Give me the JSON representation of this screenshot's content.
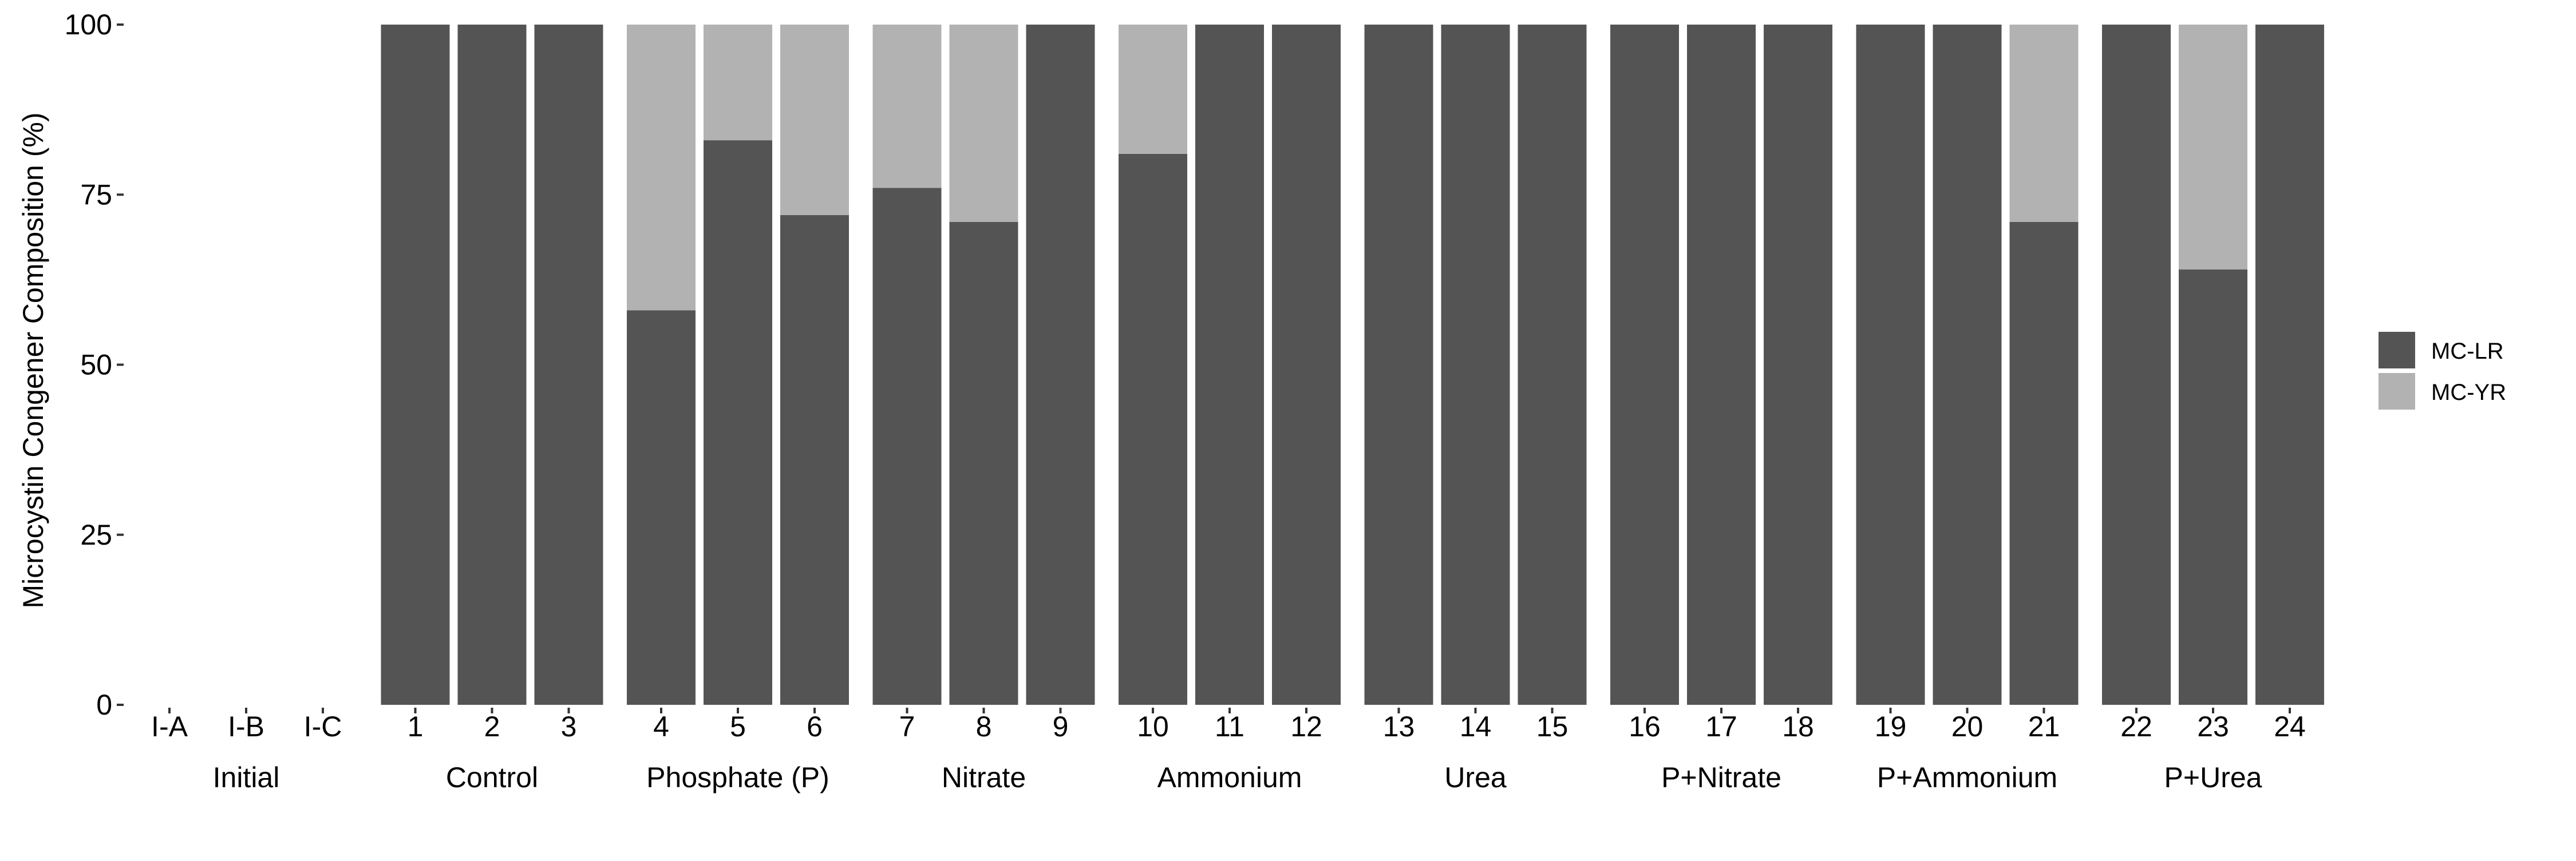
{
  "chart_data": {
    "type": "bar",
    "stacked": true,
    "ylabel": "Microcystin Congener Composition (%)",
    "xlabel": "",
    "ylim": [
      0,
      100
    ],
    "yticks": [
      0,
      25,
      50,
      75,
      100
    ],
    "grid": false,
    "legend_position": "right",
    "colors": {
      "MC-LR": "#545454",
      "MC-YR": "#b2b2b2"
    },
    "categories": [
      "I-A",
      "I-B",
      "I-C",
      "1",
      "2",
      "3",
      "4",
      "5",
      "6",
      "7",
      "8",
      "9",
      "10",
      "11",
      "12",
      "13",
      "14",
      "15",
      "16",
      "17",
      "18",
      "19",
      "20",
      "21",
      "22",
      "23",
      "24"
    ],
    "groups": [
      {
        "label": "Initial",
        "categories": [
          "I-A",
          "I-B",
          "I-C"
        ]
      },
      {
        "label": "Control",
        "categories": [
          "1",
          "2",
          "3"
        ]
      },
      {
        "label": "Phosphate (P)",
        "categories": [
          "4",
          "5",
          "6"
        ]
      },
      {
        "label": "Nitrate",
        "categories": [
          "7",
          "8",
          "9"
        ]
      },
      {
        "label": "Ammonium",
        "categories": [
          "10",
          "11",
          "12"
        ]
      },
      {
        "label": "Urea",
        "categories": [
          "13",
          "14",
          "15"
        ]
      },
      {
        "label": "P+Nitrate",
        "categories": [
          "16",
          "17",
          "18"
        ]
      },
      {
        "label": "P+Ammonium",
        "categories": [
          "19",
          "20",
          "21"
        ]
      },
      {
        "label": "P+Urea",
        "categories": [
          "22",
          "23",
          "24"
        ]
      }
    ],
    "series": [
      {
        "name": "MC-LR",
        "values": [
          0,
          0,
          0,
          100,
          100,
          100,
          58,
          83,
          72,
          76,
          71,
          100,
          81,
          100,
          100,
          100,
          100,
          100,
          100,
          100,
          100,
          100,
          100,
          71,
          100,
          64,
          100
        ]
      },
      {
        "name": "MC-YR",
        "values": [
          0,
          0,
          0,
          0,
          0,
          0,
          42,
          17,
          28,
          24,
          29,
          0,
          19,
          0,
          0,
          0,
          0,
          0,
          0,
          0,
          0,
          0,
          0,
          29,
          0,
          36,
          0
        ]
      }
    ]
  }
}
